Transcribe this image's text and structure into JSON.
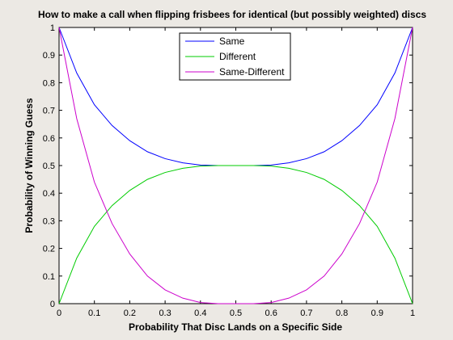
{
  "chart_data": {
    "type": "line",
    "title": "How to make a call when flipping frisbees for identical (but possibly weighted) discs",
    "xlabel": "Probability That Disc Lands on a Specific Side",
    "ylabel": "Probability of Winning Guess",
    "xlim": [
      0,
      1
    ],
    "ylim": [
      0,
      1
    ],
    "x_ticks": [
      0,
      0.1,
      0.2,
      0.3,
      0.4,
      0.5,
      0.6,
      0.7,
      0.8,
      0.9,
      1
    ],
    "x_tick_labels": [
      "0",
      "0.1",
      "0.2",
      "0.3",
      "0.4",
      "0.5",
      "0.6",
      "0.7",
      "0.8",
      "0.9",
      "1"
    ],
    "y_ticks": [
      0,
      0.1,
      0.2,
      0.3,
      0.4,
      0.5,
      0.6,
      0.7,
      0.8,
      0.9,
      1
    ],
    "y_tick_labels": [
      "0",
      "0.1",
      "0.2",
      "0.3",
      "0.4",
      "0.5",
      "0.6",
      "0.7",
      "0.8",
      "0.9",
      "1"
    ],
    "grid": false,
    "legend_position": "top-center",
    "x": [
      0,
      0.05,
      0.1,
      0.15,
      0.2,
      0.25,
      0.3,
      0.35,
      0.4,
      0.45,
      0.5,
      0.55,
      0.6,
      0.65,
      0.7,
      0.75,
      0.8,
      0.85,
      0.9,
      0.95,
      1
    ],
    "series": [
      {
        "name": "Same",
        "color": "#0000ff",
        "values": [
          1,
          0.835,
          0.72,
          0.645,
          0.59,
          0.55,
          0.525,
          0.51,
          0.502,
          0.5,
          0.5,
          0.5,
          0.502,
          0.51,
          0.525,
          0.55,
          0.59,
          0.645,
          0.72,
          0.835,
          1
        ]
      },
      {
        "name": "Different",
        "color": "#00cc00",
        "values": [
          0,
          0.165,
          0.28,
          0.355,
          0.41,
          0.45,
          0.475,
          0.49,
          0.498,
          0.5,
          0.5,
          0.5,
          0.498,
          0.49,
          0.475,
          0.45,
          0.41,
          0.355,
          0.28,
          0.165,
          0
        ]
      },
      {
        "name": "Same-Different",
        "color": "#cc00cc",
        "values": [
          1,
          0.67,
          0.44,
          0.29,
          0.18,
          0.1,
          0.05,
          0.02,
          0.004,
          0,
          0,
          0,
          0.004,
          0.02,
          0.05,
          0.1,
          0.18,
          0.29,
          0.44,
          0.67,
          1
        ]
      }
    ]
  }
}
